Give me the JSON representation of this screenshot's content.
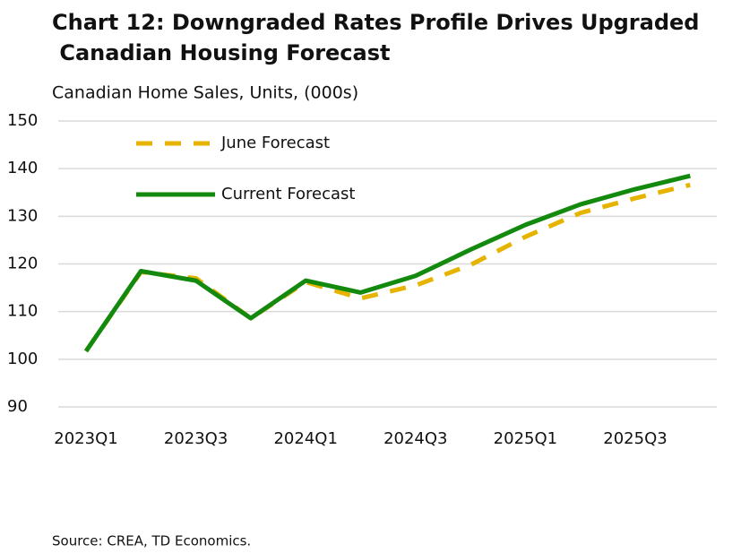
{
  "chart_data": {
    "type": "line",
    "title": "Chart 12: Downgraded Rates Profile Drives Upgraded Canadian Housing Forecast",
    "subtitle": "Canadian Home Sales, Units, (000s)",
    "source": "Source: CREA, TD Economics.",
    "categories": [
      "2023Q1",
      null,
      "2023Q3",
      null,
      "2024Q1",
      null,
      "2024Q3",
      null,
      "2025Q1",
      null,
      "2025Q3",
      null
    ],
    "series": [
      {
        "name": "June Forecast",
        "color": "#e6b400",
        "dashed": true,
        "values": [
          101.7,
          118.3,
          117.0,
          108.6,
          116.2,
          112.8,
          115.5,
          119.8,
          125.7,
          130.7,
          133.8,
          136.6
        ]
      },
      {
        "name": "Current Forecast",
        "color": "#138a0e",
        "dashed": false,
        "values": [
          101.7,
          118.5,
          116.5,
          108.6,
          116.5,
          114.0,
          117.5,
          123.0,
          128.2,
          132.5,
          135.7,
          138.5
        ]
      }
    ],
    "ylim": [
      90,
      150
    ],
    "yticks": [
      90,
      100,
      110,
      120,
      130,
      140,
      150
    ],
    "grid": true,
    "legend": "upper left"
  }
}
